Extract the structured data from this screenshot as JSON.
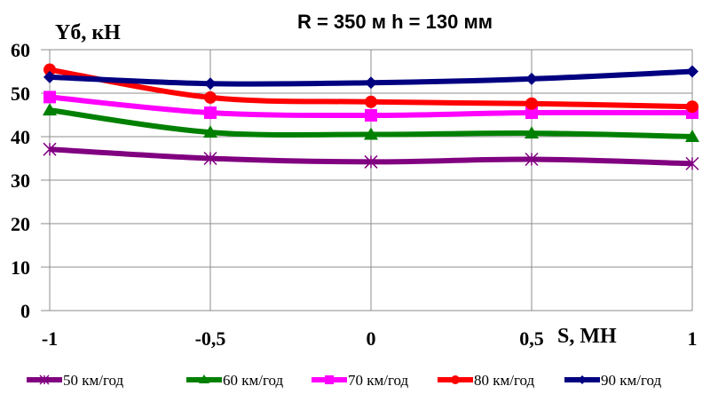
{
  "chart_data": {
    "type": "line",
    "title": "R = 350 м  h = 130 мм",
    "ylabel": "Yб, кН",
    "xlabel": "S, МН",
    "x": [
      -1,
      -0.5,
      0,
      0.5,
      1
    ],
    "x_tick_labels": [
      "-1",
      "-0,5",
      "0",
      "0,5",
      "1"
    ],
    "y_tick_labels": [
      "0",
      "10",
      "20",
      "30",
      "40",
      "50",
      "60"
    ],
    "y_ticks": [
      0,
      10,
      20,
      30,
      40,
      50,
      60
    ],
    "xlim": [
      -1,
      1
    ],
    "ylim": [
      0,
      60
    ],
    "grid": true,
    "legend_position": "bottom",
    "series": [
      {
        "name": "50 км/год",
        "color": "#800080",
        "marker": "asterisk",
        "values": [
          37.1,
          35.0,
          34.2,
          34.8,
          33.8
        ]
      },
      {
        "name": "60 км/год",
        "color": "#008000",
        "marker": "triangle",
        "values": [
          46.1,
          41.0,
          40.5,
          40.8,
          40.0
        ]
      },
      {
        "name": "70 км/год",
        "color": "#FF00FF",
        "marker": "square",
        "values": [
          49.1,
          45.5,
          44.9,
          45.5,
          45.5
        ]
      },
      {
        "name": "80 км/год",
        "color": "#FF0000",
        "marker": "circle",
        "values": [
          55.4,
          49.0,
          48.0,
          47.6,
          46.9
        ]
      },
      {
        "name": "90 км/год",
        "color": "#000080",
        "marker": "diamond",
        "values": [
          53.7,
          52.2,
          52.4,
          53.3,
          55.0
        ]
      }
    ]
  }
}
